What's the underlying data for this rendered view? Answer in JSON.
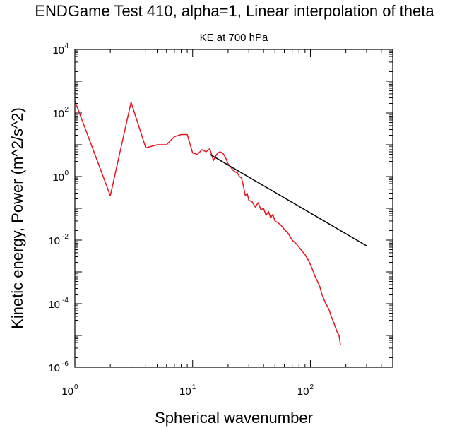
{
  "chart_data": {
    "type": "line",
    "title": "ENDGame Test 410, alpha=1, Linear interpolation of theta",
    "subtitle": "KE at 700 hPa",
    "xlabel": "Spherical wavenumber",
    "ylabel": "Kinetic energy, Power (m^2/s^2)",
    "x_scale": "log",
    "y_scale": "log",
    "xlim": [
      1,
      500
    ],
    "ylim": [
      1e-06,
      10000
    ],
    "x_ticks": [
      {
        "value": 1,
        "base": "10",
        "exp": "0"
      },
      {
        "value": 10,
        "base": "10",
        "exp": "1"
      },
      {
        "value": 100,
        "base": "10",
        "exp": "2"
      }
    ],
    "y_ticks": [
      {
        "value": 1e-06,
        "base": "10",
        "exp": "-6"
      },
      {
        "value": 0.0001,
        "base": "10",
        "exp": "-4"
      },
      {
        "value": 0.01,
        "base": "10",
        "exp": "-2"
      },
      {
        "value": 1,
        "base": "10",
        "exp": "0"
      },
      {
        "value": 100,
        "base": "10",
        "exp": "2"
      },
      {
        "value": 10000,
        "base": "10",
        "exp": "4"
      }
    ],
    "series": [
      {
        "color": "#e8141e",
        "x": [
          1,
          2,
          3,
          4,
          5,
          6,
          7,
          8,
          9,
          10,
          11,
          12,
          13,
          14,
          15,
          16,
          17,
          18,
          19,
          20,
          21,
          22,
          23,
          24,
          25,
          26,
          27,
          28,
          29,
          30,
          32,
          34,
          36,
          38,
          40,
          42,
          44,
          46,
          48,
          50,
          53,
          56,
          60,
          65,
          70,
          75,
          80,
          85,
          90,
          95,
          100,
          105,
          110,
          115,
          120,
          125,
          130,
          135,
          140,
          145,
          150,
          155,
          160,
          165,
          170,
          175,
          180
        ],
        "y": [
          240,
          0.25,
          220,
          8,
          10,
          10,
          18,
          21,
          21,
          5.5,
          5,
          7,
          6,
          7.5,
          3.2,
          5,
          6,
          5.5,
          4,
          2.5,
          2,
          1.6,
          1.4,
          1.3,
          1.0,
          0.9,
          0.5,
          0.25,
          0.3,
          0.18,
          0.16,
          0.11,
          0.15,
          0.09,
          0.1,
          0.06,
          0.08,
          0.05,
          0.065,
          0.04,
          0.035,
          0.03,
          0.022,
          0.016,
          0.01,
          0.008,
          0.006,
          0.0045,
          0.0035,
          0.0025,
          0.0017,
          0.0011,
          0.0007,
          0.0005,
          0.00035,
          0.0002,
          0.00014,
          0.0001,
          8e-05,
          6e-05,
          4e-05,
          3e-05,
          2.2e-05,
          1.6e-05,
          1.2e-05,
          1e-05,
          5e-06
        ]
      },
      {
        "color": "#000000",
        "x": [
          14,
          300
        ],
        "y": [
          5,
          0.0066
        ]
      }
    ]
  }
}
